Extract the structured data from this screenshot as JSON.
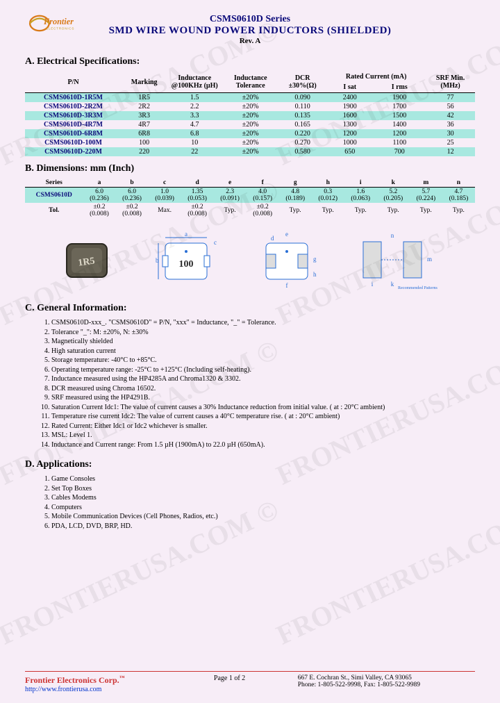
{
  "header": {
    "series": "CSMS0610D Series",
    "title": "SMD WIRE WOUND POWER INDUCTORS (SHIELDED)",
    "rev": "Rev. A"
  },
  "sectionA": {
    "title": "A. Electrical Specifications:",
    "columns": {
      "pn": "P/N",
      "marking": "Marking",
      "inductance": "Inductance @100KHz (µH)",
      "tolerance": "Inductance Tolerance",
      "dcr": "DCR ±30%(Ω)",
      "rated": "Rated Current (mA)",
      "isat": "I sat",
      "irms": "I rms",
      "srf": "SRF Min. (MHz)"
    },
    "rows": [
      {
        "pn": "CSMS0610D-1R5M",
        "marking": "1R5",
        "ind": "1.5",
        "tol": "±20%",
        "dcr": "0.090",
        "isat": "2400",
        "irms": "1900",
        "srf": "77",
        "hl": true
      },
      {
        "pn": "CSMS0610D-2R2M",
        "marking": "2R2",
        "ind": "2.2",
        "tol": "±20%",
        "dcr": "0.110",
        "isat": "1900",
        "irms": "1700",
        "srf": "56",
        "hl": false
      },
      {
        "pn": "CSMS0610D-3R3M",
        "marking": "3R3",
        "ind": "3.3",
        "tol": "±20%",
        "dcr": "0.135",
        "isat": "1600",
        "irms": "1500",
        "srf": "42",
        "hl": true
      },
      {
        "pn": "CSMS0610D-4R7M",
        "marking": "4R7",
        "ind": "4.7",
        "tol": "±20%",
        "dcr": "0.165",
        "isat": "1300",
        "irms": "1400",
        "srf": "36",
        "hl": false
      },
      {
        "pn": "CSMS0610D-6R8M",
        "marking": "6R8",
        "ind": "6.8",
        "tol": "±20%",
        "dcr": "0.220",
        "isat": "1200",
        "irms": "1200",
        "srf": "30",
        "hl": true
      },
      {
        "pn": "CSMS0610D-100M",
        "marking": "100",
        "ind": "10",
        "tol": "±20%",
        "dcr": "0.270",
        "isat": "1000",
        "irms": "1100",
        "srf": "25",
        "hl": false
      },
      {
        "pn": "CSMS0610D-220M",
        "marking": "220",
        "ind": "22",
        "tol": "±20%",
        "dcr": "0.580",
        "isat": "650",
        "irms": "700",
        "srf": "12",
        "hl": true
      }
    ]
  },
  "sectionB": {
    "title": "B. Dimensions: mm (Inch)",
    "headers": [
      "Series",
      "a",
      "b",
      "c",
      "d",
      "e",
      "f",
      "g",
      "h",
      "i",
      "k",
      "m",
      "n"
    ],
    "data_row": {
      "series": "CSMS0610D",
      "a": "6.0 (0.236)",
      "b": "6.0 (0.236)",
      "c": "1.0 (0.039)",
      "d": "1.35 (0.053)",
      "e": "2.3 (0.091)",
      "f": "4.0 (0.157)",
      "g": "4.8 (0.189)",
      "h": "0.3 (0.012)",
      "i": "1.6 (0.063)",
      "k": "5.2 (0.205)",
      "m": "5.7 (0.224)",
      "n": "4.7 (0.185)"
    },
    "tol_row": {
      "label": "Tol.",
      "a": "±0.2 (0.008)",
      "b": "±0.2 (0.008)",
      "c": "Max.",
      "d": "±0.2 (0.008)",
      "e": "Typ.",
      "f": "±0.2 (0.008)",
      "g": "Typ.",
      "h": "Typ.",
      "i": "Typ.",
      "k": "Typ.",
      "m": "Typ.",
      "n": "Typ."
    },
    "diagram_labels": {
      "a": "a",
      "b": "b",
      "c": "c",
      "d": "d",
      "e": "e",
      "f": "f",
      "g": "g",
      "h": "h",
      "i": "i",
      "k": "k",
      "m": "m",
      "n": "n",
      "marking_text": "100",
      "rec": "Recommended Patterns",
      "photo_text": "1R5"
    },
    "style": {
      "line_color": "#2a6fd6",
      "line_width": 1,
      "fill": "#ffffff"
    }
  },
  "sectionC": {
    "title": "C. General Information:",
    "items": [
      "CSMS0610D-xxx_. \"CSMS0610D\" = P/N, \"xxx\" = Inductance, \"_\" = Tolerance.",
      "Tolerance \"_\": M: ±20%, N: ±30%",
      "Magnetically shielded",
      "High saturation current",
      "Storage temperature: -40°C to +85°C.",
      "Operating temperature range: -25°C to +125°C (Including self-heating).",
      "Inductance measured using the HP4285A and Chroma1320 & 3302.",
      "DCR measured using Chroma 16502.",
      "SRF measured using the HP4291B.",
      "Saturation Current Idc1: The value of current causes a 30% Inductance reduction from initial value. ( at : 20°C ambient)",
      "Temperature rise current Idc2: The value of current causes a 40°C temperature rise. ( at : 20°C ambient)",
      "Rated Current: Either Idc1 or Idc2 whichever is smaller.",
      "MSL: Level 1.",
      "Inductance and Current range: From 1.5 µH (1900mA) to 22.0 µH (650mA)."
    ]
  },
  "sectionD": {
    "title": "D. Applications:",
    "items": [
      "Game Consoles",
      "Set Top Boxes",
      "Cables Modems",
      "Computers",
      "Mobile Communication Devices (Cell Phones, Radios, etc.)",
      "PDA, LCD, DVD, BRP, HD."
    ]
  },
  "footer": {
    "company": "Frontier Electronics Corp.",
    "url": "http://www.frontierusa.com",
    "page": "Page 1 of 2",
    "addr1": "667 E. Cochran St., Simi Valley, CA 93065",
    "addr2": "Phone: 1-805-522-9998, Fax: 1-805-522-9989"
  },
  "watermark_text": "FRONTIERUSA.COM ©",
  "logo": {
    "text1": "Frontier",
    "text2": "ELECTRONICS",
    "orange": "#d97b1a",
    "gold": "#c9a227"
  }
}
